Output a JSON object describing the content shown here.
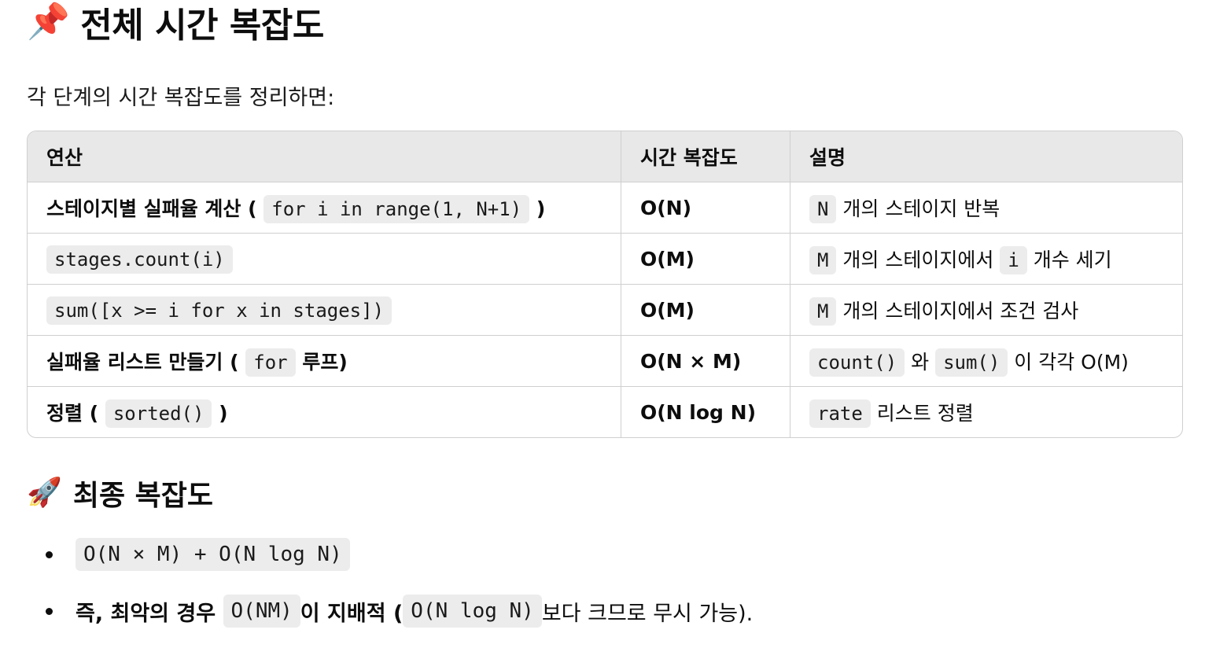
{
  "section_total": {
    "emoji": "📌",
    "title": "전체 시간 복잡도"
  },
  "intro": "각 단계의 시간 복잡도를 정리하면:",
  "table": {
    "headers": [
      "연산",
      "시간 복잡도",
      "설명"
    ],
    "rows": [
      {
        "op_text": "스테이지별 실패율 계산 (",
        "op_code": "for i in range(1, N+1)",
        "op_tail": ")",
        "complexity": "O(N)",
        "desc_code": "N",
        "desc_text": "개의 스테이지 반복"
      },
      {
        "op_code": "stages.count(i)",
        "complexity": "O(M)",
        "desc_code": "M",
        "desc_text": "개의 스테이지에서",
        "desc_code2": "i",
        "desc_text2": "개수 세기"
      },
      {
        "op_code": "sum([x >= i for x in stages])",
        "complexity": "O(M)",
        "desc_code": "M",
        "desc_text": "개의 스테이지에서 조건 검사"
      },
      {
        "op_text": "실패율 리스트 만들기 (",
        "op_code": "for",
        "op_tail": "루프)",
        "complexity": "O(N × M)",
        "desc_code": "count()",
        "desc_text": "와",
        "desc_code2": "sum()",
        "desc_text2": "이 각각 O(M)"
      },
      {
        "op_text": "정렬 (",
        "op_code": "sorted()",
        "op_tail": ")",
        "complexity": "O(N log N)",
        "desc_code": "rate",
        "desc_text": "리스트 정렬"
      }
    ]
  },
  "section_final": {
    "emoji": "🚀",
    "title": "최종 복잡도"
  },
  "bullets": [
    {
      "code": "O(N × M) + O(N log N)"
    },
    {
      "text1": "즉, 최악의 경우",
      "code1": "O(NM)",
      "text2": "이 지배적 (",
      "code2": "O(N log N)",
      "text3": "보다 크므로 무시 가능)."
    }
  ]
}
